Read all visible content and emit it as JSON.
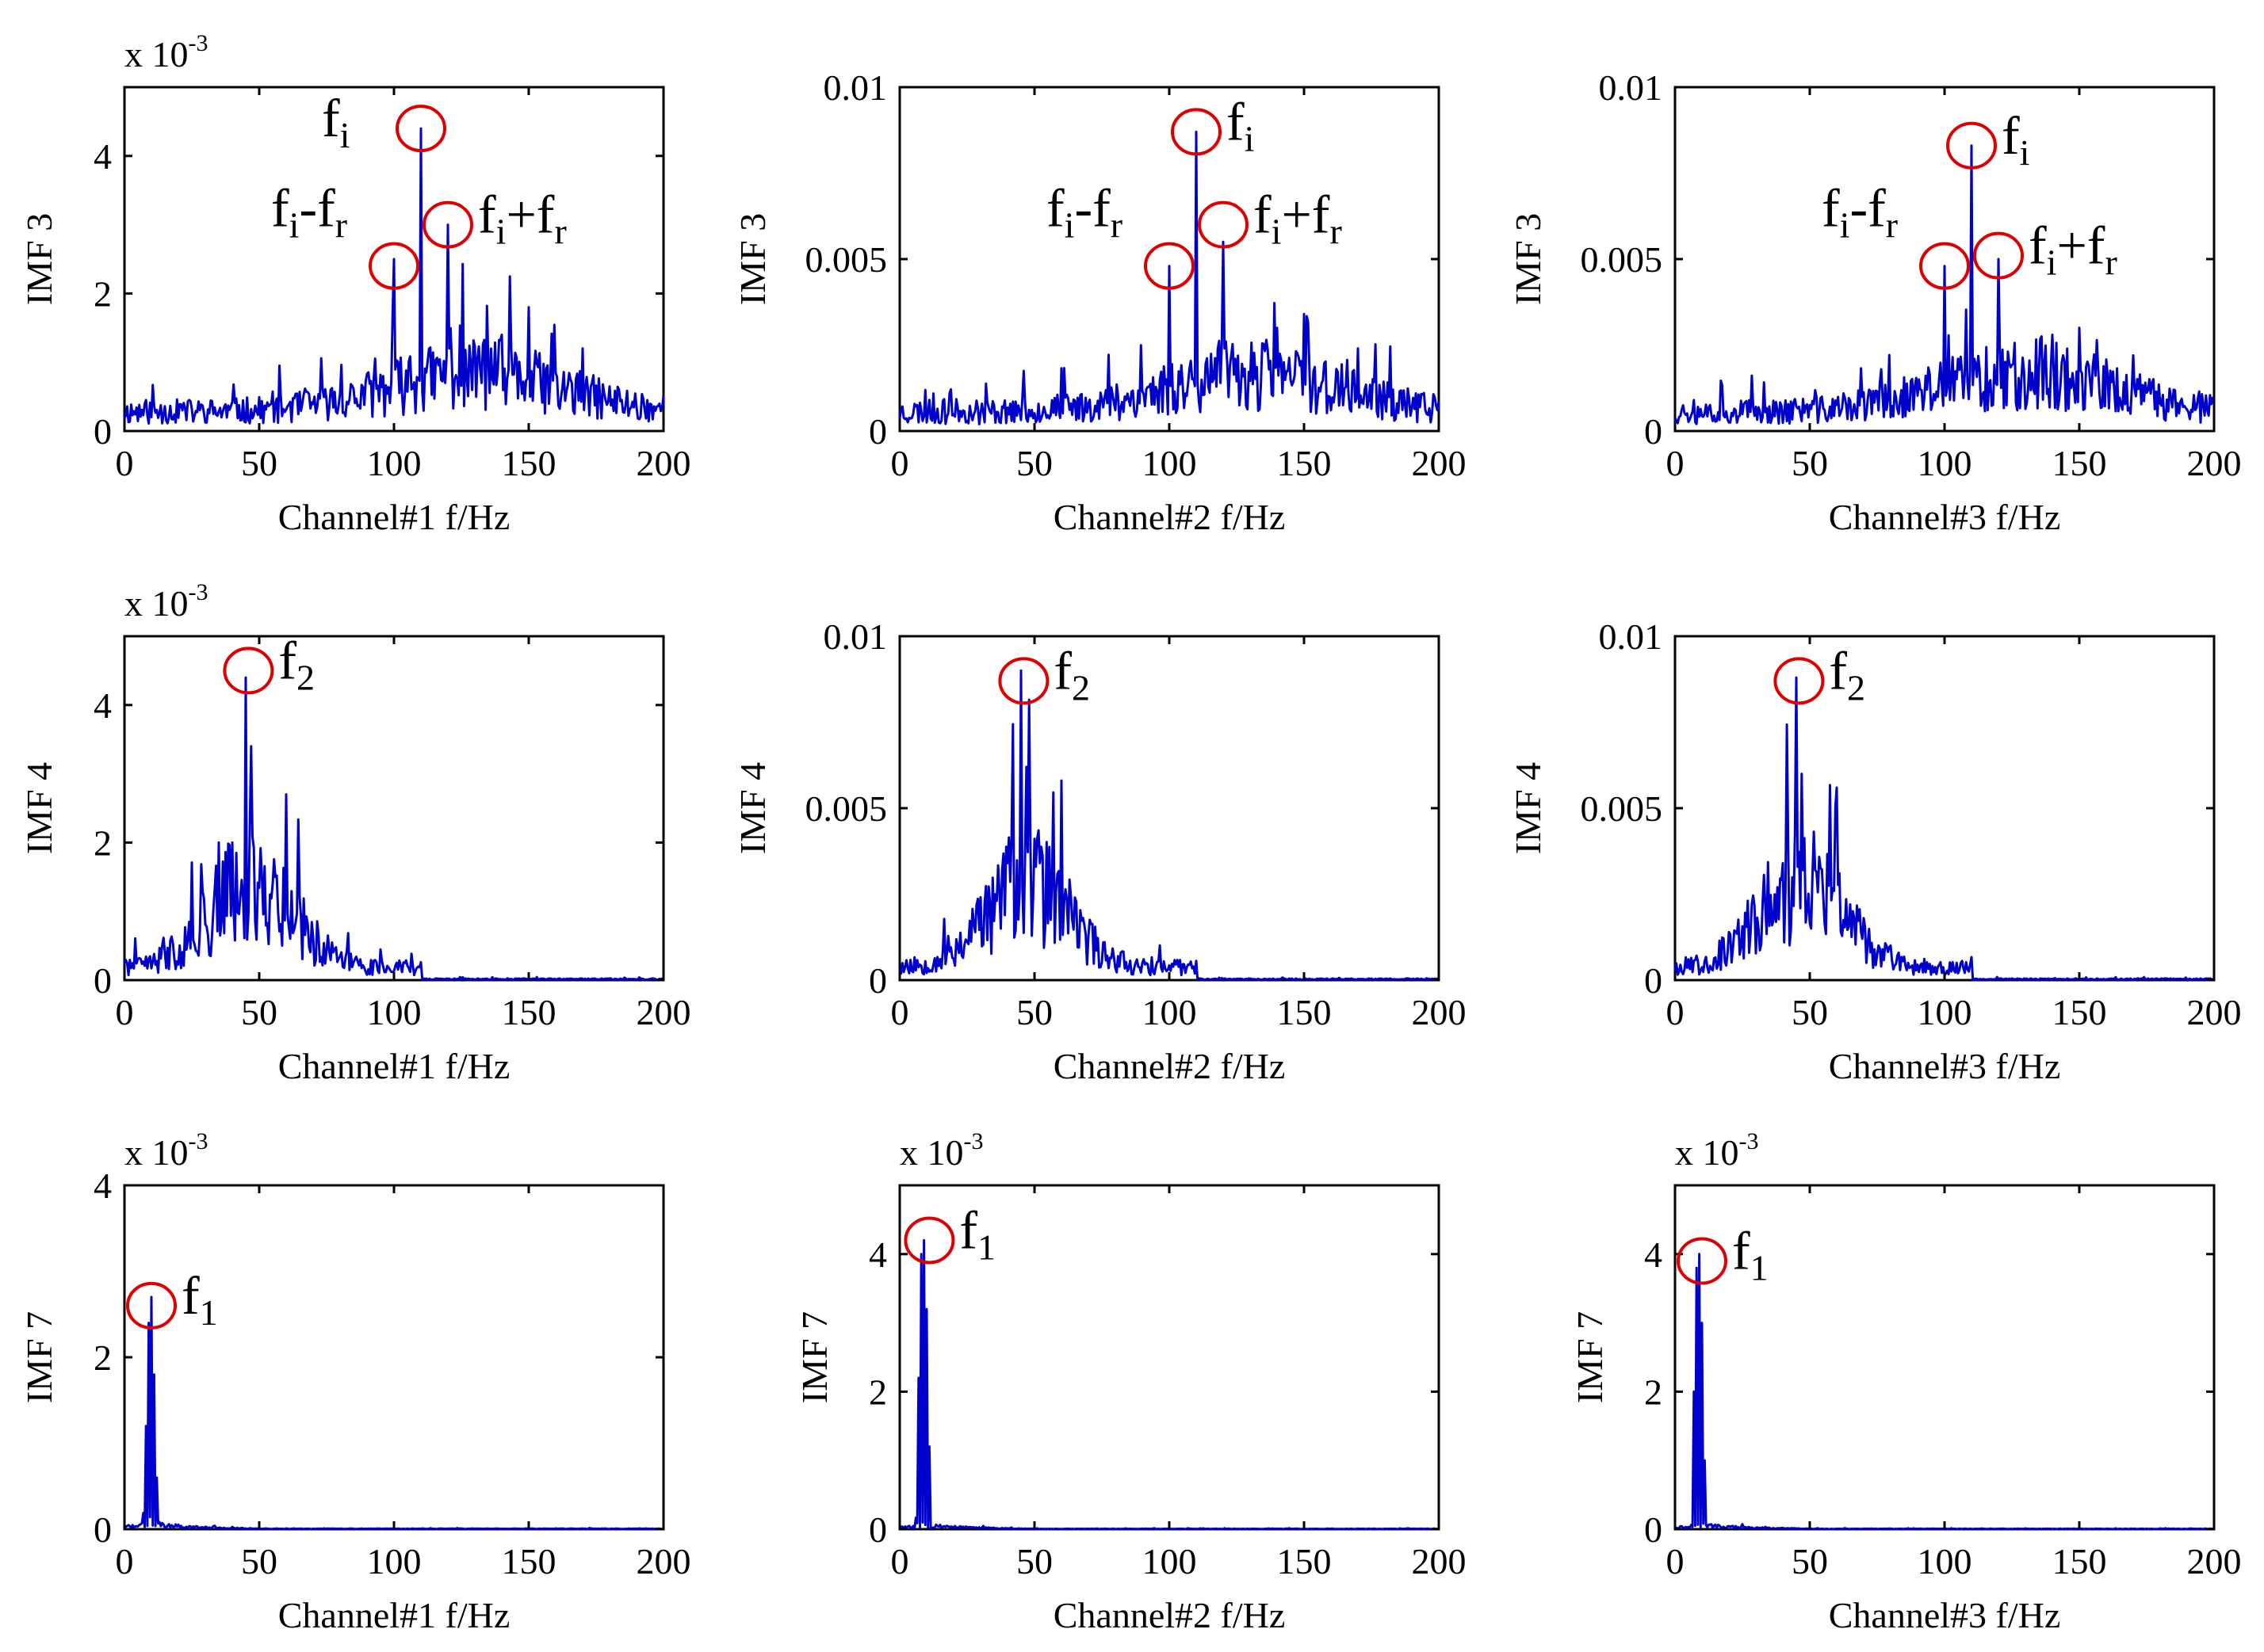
{
  "colors": {
    "series": "#0000cc",
    "marker": "#dd0000",
    "axis": "#000000"
  },
  "chart_data": [
    {
      "type": "line",
      "row": 0,
      "col": 0,
      "ylabel": "IMF 3",
      "xlabel": "Channel#1  f/Hz",
      "exponent": {
        "base": "x 10",
        "power": "-3"
      },
      "xlim": [
        0,
        200
      ],
      "ylim": [
        0,
        0.005
      ],
      "xticks": [
        "0",
        "50",
        "100",
        "150",
        "200"
      ],
      "yticks": [
        {
          "v": 0,
          "t": "0"
        },
        {
          "v": 0.002,
          "t": "2"
        },
        {
          "v": 0.004,
          "t": "4"
        }
      ],
      "noise": {
        "profile": "imf3",
        "seed": 11,
        "scale": 1.0
      },
      "peaks": [
        [
          100,
          0.0025
        ],
        [
          110,
          0.0044
        ],
        [
          120,
          0.003
        ],
        [
          140,
          0.0014
        ],
        [
          150,
          0.0018
        ],
        [
          170,
          0.0012
        ]
      ],
      "annotations": [
        {
          "x": 110,
          "y": 0.0044,
          "label": [
            "f",
            "i"
          ],
          "anchor": "left"
        },
        {
          "x": 100,
          "y": 0.0024,
          "label": [
            "f",
            "i",
            "-f",
            "r"
          ],
          "anchor": "upleft"
        },
        {
          "x": 120,
          "y": 0.003,
          "label": [
            "f",
            "i",
            "+f",
            "r"
          ],
          "anchor": "right"
        }
      ]
    },
    {
      "type": "line",
      "row": 0,
      "col": 1,
      "ylabel": "IMF 3",
      "xlabel": "Channel#2  f/Hz",
      "xlim": [
        0,
        200
      ],
      "ylim": [
        0,
        0.01
      ],
      "xticks": [
        "0",
        "50",
        "100",
        "150",
        "200"
      ],
      "yticks": [
        {
          "v": 0,
          "t": "0"
        },
        {
          "v": 0.005,
          "t": "0.005"
        },
        {
          "v": 0.01,
          "t": "0.01"
        }
      ],
      "noise": {
        "profile": "imf3",
        "seed": 23,
        "scale": 2.0
      },
      "peaks": [
        [
          100,
          0.0048
        ],
        [
          110,
          0.0087
        ],
        [
          120,
          0.0055
        ],
        [
          140,
          0.003
        ],
        [
          150,
          0.0034
        ],
        [
          170,
          0.0024
        ]
      ],
      "annotations": [
        {
          "x": 110,
          "y": 0.0087,
          "label": [
            "f",
            "i"
          ],
          "anchor": "right"
        },
        {
          "x": 100,
          "y": 0.0048,
          "label": [
            "f",
            "i",
            "-f",
            "r"
          ],
          "anchor": "upleft"
        },
        {
          "x": 120,
          "y": 0.006,
          "label": [
            "f",
            "i",
            "+f",
            "r"
          ],
          "anchor": "right"
        }
      ]
    },
    {
      "type": "line",
      "row": 0,
      "col": 2,
      "ylabel": "IMF 3",
      "xlabel": "Channel#3  f/Hz",
      "xlim": [
        0,
        200
      ],
      "ylim": [
        0,
        0.01
      ],
      "xticks": [
        "0",
        "50",
        "100",
        "150",
        "200"
      ],
      "yticks": [
        {
          "v": 0,
          "t": "0"
        },
        {
          "v": 0.005,
          "t": "0.005"
        },
        {
          "v": 0.01,
          "t": "0.01"
        }
      ],
      "noise": {
        "profile": "imf3",
        "seed": 37,
        "scale": 2.0
      },
      "peaks": [
        [
          100,
          0.0048
        ],
        [
          110,
          0.0083
        ],
        [
          120,
          0.005
        ],
        [
          140,
          0.0028
        ],
        [
          150,
          0.003
        ],
        [
          170,
          0.0022
        ]
      ],
      "annotations": [
        {
          "x": 110,
          "y": 0.0083,
          "label": [
            "f",
            "i"
          ],
          "anchor": "right"
        },
        {
          "x": 100,
          "y": 0.0048,
          "label": [
            "f",
            "i",
            "-f",
            "r"
          ],
          "anchor": "upleft"
        },
        {
          "x": 120,
          "y": 0.0051,
          "label": [
            "f",
            "i",
            "+f",
            "r"
          ],
          "anchor": "right"
        }
      ]
    },
    {
      "type": "line",
      "row": 1,
      "col": 0,
      "ylabel": "IMF 4",
      "xlabel": "Channel#1  f/Hz",
      "exponent": {
        "base": "x 10",
        "power": "-3"
      },
      "xlim": [
        0,
        200
      ],
      "ylim": [
        0,
        0.005
      ],
      "xticks": [
        "0",
        "50",
        "100",
        "150",
        "200"
      ],
      "yticks": [
        {
          "v": 0,
          "t": "0"
        },
        {
          "v": 0.002,
          "t": "2"
        },
        {
          "v": 0.004,
          "t": "4"
        }
      ],
      "noise": {
        "profile": "imf4",
        "seed": 41,
        "scale": 1.0
      },
      "peaks": [
        [
          35,
          0.002
        ],
        [
          40,
          0.002
        ],
        [
          45,
          0.0044
        ],
        [
          47,
          0.0034
        ],
        [
          55,
          0.0014
        ],
        [
          60,
          0.0027
        ],
        [
          65,
          0.0012
        ]
      ],
      "annotations": [
        {
          "x": 46,
          "y": 0.0045,
          "label": [
            "f",
            "2"
          ],
          "anchor": "right"
        }
      ]
    },
    {
      "type": "line",
      "row": 1,
      "col": 1,
      "ylabel": "IMF 4",
      "xlabel": "Channel#2  f/Hz",
      "xlim": [
        0,
        200
      ],
      "ylim": [
        0,
        0.01
      ],
      "xticks": [
        "0",
        "50",
        "100",
        "150",
        "200"
      ],
      "yticks": [
        {
          "v": 0,
          "t": "0"
        },
        {
          "v": 0.005,
          "t": "0.005"
        },
        {
          "v": 0.01,
          "t": "0.01"
        }
      ],
      "noise": {
        "profile": "imf4",
        "seed": 53,
        "scale": 2.0
      },
      "peaks": [
        [
          40,
          0.0034
        ],
        [
          45,
          0.009
        ],
        [
          47,
          0.0062
        ],
        [
          52,
          0.0034
        ],
        [
          60,
          0.0058
        ],
        [
          65,
          0.0024
        ]
      ],
      "annotations": [
        {
          "x": 46,
          "y": 0.0087,
          "label": [
            "f",
            "2"
          ],
          "anchor": "right"
        }
      ]
    },
    {
      "type": "line",
      "row": 1,
      "col": 2,
      "ylabel": "IMF 4",
      "xlabel": "Channel#3  f/Hz",
      "xlim": [
        0,
        200
      ],
      "ylim": [
        0,
        0.01
      ],
      "xticks": [
        "0",
        "50",
        "100",
        "150",
        "200"
      ],
      "yticks": [
        {
          "v": 0,
          "t": "0"
        },
        {
          "v": 0.005,
          "t": "0.005"
        },
        {
          "v": 0.01,
          "t": "0.01"
        }
      ],
      "noise": {
        "profile": "imf4",
        "seed": 67,
        "scale": 2.0
      },
      "peaks": [
        [
          40,
          0.0034
        ],
        [
          45,
          0.0088
        ],
        [
          47,
          0.006
        ],
        [
          52,
          0.0032
        ],
        [
          60,
          0.0056
        ],
        [
          65,
          0.0022
        ]
      ],
      "annotations": [
        {
          "x": 46,
          "y": 0.0087,
          "label": [
            "f",
            "2"
          ],
          "anchor": "right"
        }
      ]
    },
    {
      "type": "line",
      "row": 2,
      "col": 0,
      "ylabel": "IMF 7",
      "xlabel": "Channel#1  f/Hz",
      "exponent": {
        "base": "x 10",
        "power": "-3"
      },
      "xlim": [
        0,
        200
      ],
      "ylim": [
        0,
        0.004
      ],
      "xticks": [
        "0",
        "50",
        "100",
        "150",
        "200"
      ],
      "yticks": [
        {
          "v": 0,
          "t": "0"
        },
        {
          "v": 0.002,
          "t": "2"
        },
        {
          "v": 0.004,
          "t": "4"
        }
      ],
      "noise": {
        "profile": "imf7",
        "seed": 71,
        "scale": 1.0
      },
      "peaks": [
        [
          8,
          0.0012
        ],
        [
          9,
          0.0024
        ],
        [
          10,
          0.0027
        ],
        [
          11,
          0.0018
        ],
        [
          12,
          0.0006
        ]
      ],
      "annotations": [
        {
          "x": 10,
          "y": 0.0026,
          "label": [
            "f",
            "1"
          ],
          "anchor": "right"
        }
      ]
    },
    {
      "type": "line",
      "row": 2,
      "col": 1,
      "ylabel": "IMF 7",
      "xlabel": "Channel#2  f/Hz",
      "exponent": {
        "base": "x 10",
        "power": "-3"
      },
      "xlim": [
        0,
        200
      ],
      "ylim": [
        0,
        0.005
      ],
      "xticks": [
        "0",
        "50",
        "100",
        "150",
        "200"
      ],
      "yticks": [
        {
          "v": 0,
          "t": "0"
        },
        {
          "v": 0.002,
          "t": "2"
        },
        {
          "v": 0.004,
          "t": "4"
        }
      ],
      "noise": {
        "profile": "imf7",
        "seed": 83,
        "scale": 1.0
      },
      "peaks": [
        [
          7,
          0.0022
        ],
        [
          8,
          0.004
        ],
        [
          9,
          0.0042
        ],
        [
          10,
          0.0032
        ],
        [
          11,
          0.0012
        ]
      ],
      "annotations": [
        {
          "x": 11,
          "y": 0.0042,
          "label": [
            "f",
            "1"
          ],
          "anchor": "right"
        }
      ]
    },
    {
      "type": "line",
      "row": 2,
      "col": 2,
      "ylabel": "IMF 7",
      "xlabel": "Channel#3  f/Hz",
      "exponent": {
        "base": "x 10",
        "power": "-3"
      },
      "xlim": [
        0,
        200
      ],
      "ylim": [
        0,
        0.005
      ],
      "xticks": [
        "0",
        "50",
        "100",
        "150",
        "200"
      ],
      "yticks": [
        {
          "v": 0,
          "t": "0"
        },
        {
          "v": 0.002,
          "t": "2"
        },
        {
          "v": 0.004,
          "t": "4"
        }
      ],
      "noise": {
        "profile": "imf7",
        "seed": 97,
        "scale": 1.0
      },
      "peaks": [
        [
          7,
          0.002
        ],
        [
          8,
          0.0038
        ],
        [
          9,
          0.004
        ],
        [
          10,
          0.003
        ],
        [
          11,
          0.001
        ]
      ],
      "annotations": [
        {
          "x": 10,
          "y": 0.0039,
          "label": [
            "f",
            "1"
          ],
          "anchor": "right"
        }
      ]
    }
  ]
}
